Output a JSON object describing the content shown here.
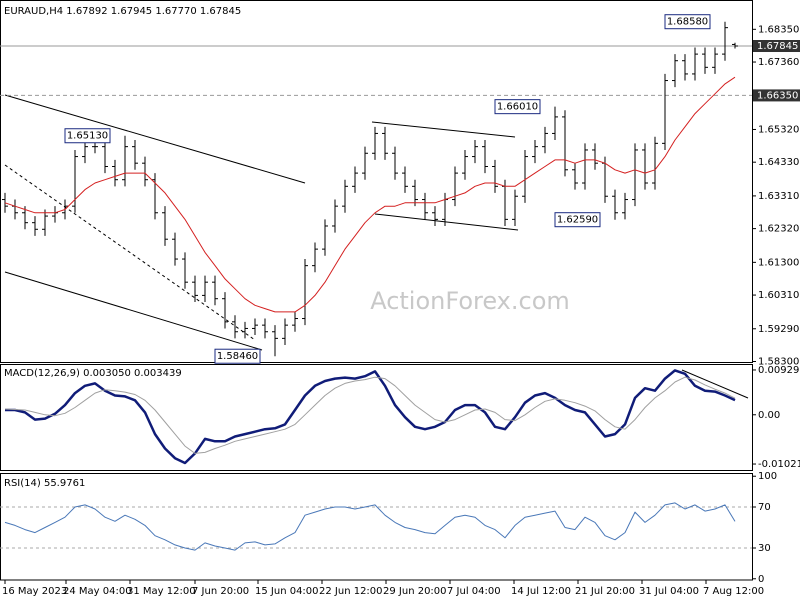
{
  "watermark": "ActionForex.com",
  "chart_data": [
    {
      "type": "candlestick",
      "title": "EURAUD,H4  1.67892 1.67945 1.67770 1.67845",
      "color": "#000000",
      "xlim": [
        -0.5,
        74.7
      ],
      "ylim": [
        1.58285,
        1.69146
      ],
      "yticks": [
        {
          "value": 1.6835,
          "label": "1.68350"
        },
        {
          "value": 1.6736,
          "label": "1.67360"
        },
        {
          "value": 1.6532,
          "label": "1.65320"
        },
        {
          "value": 1.6433,
          "label": "1.64330"
        },
        {
          "value": 1.6331,
          "label": "1.63310"
        },
        {
          "value": 1.6232,
          "label": "1.62320"
        },
        {
          "value": 1.613,
          "label": "1.61300"
        },
        {
          "value": 1.6031,
          "label": "1.60310"
        },
        {
          "value": 1.5929,
          "label": "1.59290"
        },
        {
          "value": 1.583,
          "label": "1.58300"
        }
      ],
      "open": [
        1.632,
        1.63,
        1.628,
        1.625,
        1.623,
        1.627,
        1.628,
        1.63,
        1.645,
        1.648,
        1.648,
        1.642,
        1.638,
        1.648,
        1.643,
        1.638,
        1.628,
        1.62,
        1.614,
        1.607,
        1.603,
        1.607,
        1.602,
        1.595,
        1.592,
        1.593,
        1.594,
        1.592,
        1.59,
        1.594,
        1.596,
        1.612,
        1.617,
        1.624,
        1.63,
        1.636,
        1.64,
        1.646,
        1.652,
        1.646,
        1.64,
        1.636,
        1.632,
        1.628,
        1.626,
        1.632,
        1.64,
        1.645,
        1.648,
        1.642,
        1.636,
        1.626,
        1.633,
        1.645,
        1.648,
        1.652,
        1.657,
        1.641,
        1.637,
        1.647,
        1.643,
        1.633,
        1.628,
        1.632,
        1.647,
        1.637,
        1.649,
        1.668,
        1.674,
        1.67,
        1.676,
        1.672,
        1.676,
        1.67892
      ],
      "high": [
        1.634,
        1.632,
        1.63,
        1.627,
        1.629,
        1.63,
        1.632,
        1.647,
        1.65,
        1.65,
        1.65,
        1.644,
        1.6513,
        1.65,
        1.645,
        1.64,
        1.63,
        1.622,
        1.616,
        1.609,
        1.609,
        1.609,
        1.604,
        1.597,
        1.595,
        1.596,
        1.596,
        1.594,
        1.596,
        1.598,
        1.614,
        1.619,
        1.626,
        1.632,
        1.638,
        1.642,
        1.648,
        1.654,
        1.654,
        1.648,
        1.642,
        1.638,
        1.634,
        1.63,
        1.634,
        1.642,
        1.647,
        1.65,
        1.65,
        1.644,
        1.638,
        1.635,
        1.647,
        1.65,
        1.654,
        1.6601,
        1.659,
        1.643,
        1.649,
        1.649,
        1.645,
        1.635,
        1.634,
        1.649,
        1.649,
        1.651,
        1.67,
        1.676,
        1.676,
        1.678,
        1.678,
        1.678,
        1.6858,
        1.67945
      ],
      "low": [
        1.628,
        1.626,
        1.623,
        1.621,
        1.621,
        1.625,
        1.626,
        1.628,
        1.643,
        1.646,
        1.64,
        1.636,
        1.636,
        1.641,
        1.636,
        1.626,
        1.618,
        1.612,
        1.605,
        1.601,
        1.601,
        1.6,
        1.593,
        1.59,
        1.59,
        1.591,
        1.59,
        1.5846,
        1.588,
        1.592,
        1.594,
        1.61,
        1.615,
        1.622,
        1.628,
        1.634,
        1.638,
        1.644,
        1.644,
        1.638,
        1.634,
        1.63,
        1.626,
        1.624,
        1.624,
        1.63,
        1.638,
        1.643,
        1.64,
        1.634,
        1.624,
        1.624,
        1.631,
        1.643,
        1.646,
        1.65,
        1.639,
        1.635,
        1.635,
        1.641,
        1.631,
        1.6259,
        1.626,
        1.63,
        1.635,
        1.635,
        1.647,
        1.666,
        1.668,
        1.668,
        1.67,
        1.67,
        1.674,
        1.6777
      ],
      "close": [
        1.63,
        1.628,
        1.625,
        1.623,
        1.627,
        1.628,
        1.63,
        1.645,
        1.648,
        1.648,
        1.642,
        1.638,
        1.648,
        1.643,
        1.638,
        1.628,
        1.62,
        1.614,
        1.607,
        1.603,
        1.607,
        1.602,
        1.595,
        1.592,
        1.593,
        1.594,
        1.592,
        1.59,
        1.594,
        1.596,
        1.612,
        1.617,
        1.624,
        1.63,
        1.636,
        1.64,
        1.646,
        1.652,
        1.646,
        1.64,
        1.636,
        1.632,
        1.628,
        1.626,
        1.632,
        1.64,
        1.645,
        1.648,
        1.642,
        1.636,
        1.626,
        1.633,
        1.645,
        1.648,
        1.652,
        1.657,
        1.641,
        1.637,
        1.647,
        1.643,
        1.633,
        1.628,
        1.632,
        1.647,
        1.637,
        1.649,
        1.668,
        1.674,
        1.67,
        1.676,
        1.672,
        1.676,
        1.684,
        1.67845
      ],
      "series": [
        {
          "color": "#d42020",
          "values": [
            1.631,
            1.63,
            1.629,
            1.628,
            1.628,
            1.628,
            1.629,
            1.632,
            1.635,
            1.637,
            1.638,
            1.639,
            1.64,
            1.64,
            1.64,
            1.637,
            1.634,
            1.63,
            1.626,
            1.621,
            1.616,
            1.612,
            1.608,
            1.605,
            1.602,
            1.6,
            1.599,
            1.598,
            1.598,
            1.598,
            1.6,
            1.603,
            1.607,
            1.612,
            1.617,
            1.621,
            1.625,
            1.628,
            1.63,
            1.63,
            1.631,
            1.631,
            1.631,
            1.631,
            1.632,
            1.633,
            1.634,
            1.636,
            1.637,
            1.637,
            1.636,
            1.636,
            1.638,
            1.64,
            1.642,
            1.644,
            1.644,
            1.643,
            1.644,
            1.644,
            1.643,
            1.641,
            1.64,
            1.641,
            1.64,
            1.641,
            1.645,
            1.65,
            1.654,
            1.658,
            1.661,
            1.664,
            1.667,
            1.669
          ]
        }
      ],
      "hlines": [
        {
          "value": 1.67845,
          "label": "1.67845",
          "dashed": false
        },
        {
          "value": 1.6635,
          "label": "1.66350",
          "dashed": true
        }
      ],
      "annotations": [
        {
          "x": 12,
          "value": 1.6513,
          "label": "1.65130"
        },
        {
          "x": 27,
          "value": 1.5846,
          "label": "1.58460"
        },
        {
          "x": 55,
          "value": 1.6601,
          "label": "1.66010"
        },
        {
          "x": 61,
          "value": 1.6259,
          "label": "1.62590"
        },
        {
          "x": 72,
          "value": 1.6858,
          "label": "1.68580"
        }
      ]
    },
    {
      "type": "line",
      "title": "MACD(12,26,9) 0.003050 0.003439",
      "xlim": [
        -0.5,
        74.7
      ],
      "ylim": [
        -0.01145,
        0.01032
      ],
      "yticks": [
        0.009291,
        {
          "value": 0,
          "label": "0.00"
        },
        -0.010211
      ],
      "series": [
        {
          "color": "#101c78",
          "width": 2.5,
          "values": [
            0.001,
            0.001,
            0.0005,
            -0.001,
            -0.0008,
            0.0002,
            0.002,
            0.0045,
            0.006,
            0.0065,
            0.005,
            0.004,
            0.0038,
            0.003,
            0.0005,
            -0.004,
            -0.007,
            -0.009,
            -0.01,
            -0.008,
            -0.005,
            -0.0055,
            -0.0055,
            -0.0045,
            -0.004,
            -0.0035,
            -0.003,
            -0.0028,
            -0.002,
            0.001,
            0.004,
            0.006,
            0.007,
            0.0075,
            0.0077,
            0.0075,
            0.008,
            0.009,
            0.006,
            0.002,
            -0.0005,
            -0.0025,
            -0.003,
            -0.0025,
            -0.0015,
            0.001,
            0.002,
            0.002,
            0.0005,
            -0.0025,
            -0.003,
            -0.0005,
            0.0025,
            0.004,
            0.0045,
            0.0035,
            0.002,
            0.001,
            0.0005,
            -0.002,
            -0.0045,
            -0.004,
            -0.002,
            0.0035,
            0.0055,
            0.005,
            0.0075,
            0.0092,
            0.0085,
            0.006,
            0.005,
            0.0048,
            0.004,
            0.00305
          ]
        },
        {
          "color": "#a0a0a0",
          "width": 1,
          "values": [
            0.0012,
            0.0011,
            0.001,
            0.0005,
            0,
            -0.0002,
            0.0003,
            0.0015,
            0.003,
            0.0045,
            0.0052,
            0.005,
            0.0047,
            0.0042,
            0.003,
            0.001,
            -0.0015,
            -0.004,
            -0.0065,
            -0.008,
            -0.0078,
            -0.007,
            -0.0063,
            -0.0055,
            -0.005,
            -0.0045,
            -0.004,
            -0.0035,
            -0.003,
            -0.002,
            0,
            0.002,
            0.004,
            0.0055,
            0.0065,
            0.007,
            0.0073,
            0.0078,
            0.0075,
            0.006,
            0.004,
            0.002,
            0.0005,
            -0.001,
            -0.0015,
            -0.001,
            0,
            0.001,
            0.0012,
            0.0005,
            -0.001,
            -0.0012,
            0,
            0.0015,
            0.0028,
            0.0033,
            0.003,
            0.0025,
            0.0018,
            0.0008,
            -0.001,
            -0.0025,
            -0.003,
            -0.001,
            0.0015,
            0.0035,
            0.005,
            0.0068,
            0.0078,
            0.0072,
            0.0062,
            0.0053,
            0.0045,
            0.003439
          ]
        }
      ]
    },
    {
      "type": "line",
      "title": "RSI(14) 55.9761",
      "xlim": [
        -0.5,
        74.7
      ],
      "ylim": [
        -1.2,
        101.2
      ],
      "yticks": [
        100,
        70,
        30,
        0
      ],
      "levels": [
        70,
        30
      ],
      "xticks": [
        {
          "value": 0,
          "label": "16 May 2023"
        },
        {
          "value": 6.1,
          "label": "24 May 04:00"
        },
        {
          "value": 12.5,
          "label": "31 May 12:00"
        },
        {
          "value": 19,
          "label": "7 Jun 20:00"
        },
        {
          "value": 25.3,
          "label": "15 Jun 04:00"
        },
        {
          "value": 31.7,
          "label": "22 Jun 12:00"
        },
        {
          "value": 38.1,
          "label": "29 Jun 20:00"
        },
        {
          "value": 44.5,
          "label": "7 Jul 04:00"
        },
        {
          "value": 50.9,
          "label": "14 Jul 12:00"
        },
        {
          "value": 57.3,
          "label": "21 Jul 20:00"
        },
        {
          "value": 63.7,
          "label": "31 Jul 04:00"
        },
        {
          "value": 70.1,
          "label": "7 Aug 12:00"
        }
      ],
      "series": [
        {
          "color": "#4a78b8",
          "width": 1,
          "values": [
            55,
            52,
            48,
            45,
            50,
            55,
            60,
            70,
            72,
            68,
            60,
            56,
            62,
            58,
            52,
            42,
            38,
            33,
            30,
            28,
            35,
            32,
            30,
            28,
            35,
            36,
            33,
            34,
            40,
            45,
            62,
            65,
            68,
            70,
            70,
            68,
            70,
            72,
            62,
            55,
            50,
            48,
            45,
            44,
            52,
            60,
            62,
            60,
            52,
            48,
            40,
            52,
            60,
            62,
            64,
            66,
            50,
            48,
            60,
            55,
            42,
            38,
            45,
            65,
            55,
            62,
            72,
            74,
            68,
            72,
            66,
            68,
            72,
            55.9761
          ]
        }
      ]
    }
  ]
}
